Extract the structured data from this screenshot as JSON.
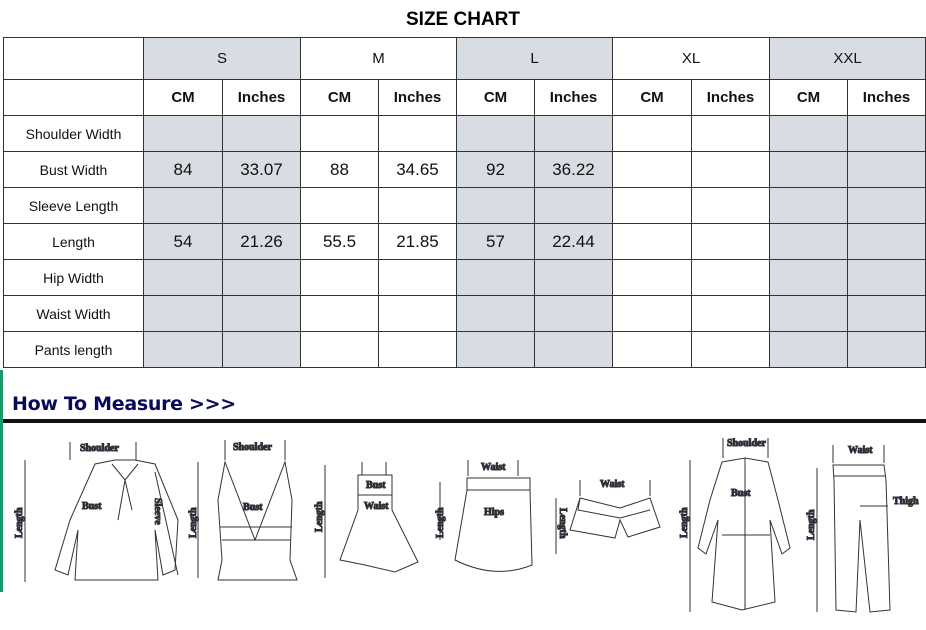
{
  "title": "SIZE CHART",
  "sizes": [
    "S",
    "M",
    "L",
    "XL",
    "XXL"
  ],
  "units": {
    "cm": "CM",
    "inches": "Inches"
  },
  "rows": [
    {
      "label": "Shoulder Width",
      "values": [
        "",
        "",
        "",
        "",
        "",
        "",
        "",
        "",
        "",
        ""
      ]
    },
    {
      "label": "Bust Width",
      "values": [
        "84",
        "33.07",
        "88",
        "34.65",
        "92",
        "36.22",
        "",
        "",
        "",
        ""
      ]
    },
    {
      "label": "Sleeve Length",
      "values": [
        "",
        "",
        "",
        "",
        "",
        "",
        "",
        "",
        "",
        ""
      ]
    },
    {
      "label": "Length",
      "values": [
        "54",
        "21.26",
        "55.5",
        "21.85",
        "57",
        "22.44",
        "",
        "",
        "",
        ""
      ]
    },
    {
      "label": "Hip Width",
      "values": [
        "",
        "",
        "",
        "",
        "",
        "",
        "",
        "",
        "",
        ""
      ]
    },
    {
      "label": "Waist Width",
      "values": [
        "",
        "",
        "",
        "",
        "",
        "",
        "",
        "",
        "",
        ""
      ]
    },
    {
      "label": "Pants length",
      "values": [
        "",
        "",
        "",
        "",
        "",
        "",
        "",
        "",
        "",
        ""
      ]
    }
  ],
  "how_to_measure": "How To Measure >>>",
  "labels": {
    "shoulder": "Shoulder",
    "bust": "Bust",
    "sleeve": "Sleeve",
    "length": "Length",
    "waist": "Waist",
    "hips": "Hips",
    "thigh": "Thigh"
  },
  "colors": {
    "size_label": "#e00000",
    "shaded": "#d8dce3",
    "diagram_text": "#1a1a6e"
  }
}
